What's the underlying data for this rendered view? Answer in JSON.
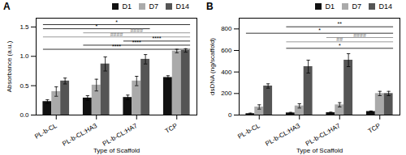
{
  "chart_data": [
    {
      "type": "bar",
      "title": "A",
      "xlabel": "Type of Scaffold",
      "ylabel": "Absorbance (a.u.)",
      "categories": [
        "PL-b-CL",
        "PL-b-CL:HA3",
        "PL-b-CL:HA7",
        "TCP"
      ],
      "series": [
        {
          "name": "D1",
          "color": "#111111",
          "values": [
            0.23,
            0.29,
            0.3,
            0.64
          ],
          "errors": [
            0.03,
            0.04,
            0.04,
            0.03
          ]
        },
        {
          "name": "D7",
          "color": "#aaaaaa",
          "values": [
            0.4,
            0.51,
            0.58,
            1.09
          ],
          "errors": [
            0.08,
            0.1,
            0.08,
            0.03
          ]
        },
        {
          "name": "D14",
          "color": "#555555",
          "values": [
            0.58,
            0.87,
            0.95,
            1.1
          ],
          "errors": [
            0.05,
            0.12,
            0.08,
            0.03
          ]
        }
      ],
      "ylim": [
        0,
        1.65
      ],
      "yticks": [
        {
          "value": 0.0,
          "label": "0.0"
        },
        0.5,
        {
          "value": 1.0,
          "label": "1.0"
        },
        1.5
      ],
      "legend": "upper right",
      "annotations": [
        {
          "text": "****",
          "y": 1.12,
          "color": "black",
          "from": "PL-b-CL",
          "to": "TCP"
        },
        {
          "text": "****",
          "y": 1.19,
          "color": "black",
          "from": "PL-b-CL:HA3",
          "to": "TCP"
        },
        {
          "text": "****",
          "y": 1.26,
          "color": "black",
          "from": "PL-b-CL:HA7",
          "to": "TCP"
        },
        {
          "text": "####",
          "y": 1.33,
          "color": "gray",
          "from": "PL-b-CL",
          "to": "TCP"
        },
        {
          "text": "####",
          "y": 1.4,
          "color": "gray",
          "from": "PL-b-CL:HA3",
          "to": "TCP"
        },
        {
          "text": "*",
          "y": 1.47,
          "color": "black",
          "from": "PL-b-CL",
          "to": "PL-b-CL:HA7"
        },
        {
          "text": "*",
          "y": 1.54,
          "color": "black",
          "from": "PL-b-CL",
          "to": "TCP"
        }
      ]
    },
    {
      "type": "bar",
      "title": "B",
      "xlabel": "Type of Scaffold",
      "ylabel": "dsDNA (ng/scaffold)",
      "categories": [
        "PL-b-CL",
        "PL-b-CL:HA3",
        "PL-b-CL:HA7",
        "TCP"
      ],
      "series": [
        {
          "name": "D1",
          "color": "#111111",
          "values": [
            13,
            20,
            22,
            33
          ],
          "errors": [
            5,
            5,
            5,
            5
          ]
        },
        {
          "name": "D7",
          "color": "#aaaaaa",
          "values": [
            75,
            85,
            95,
            200
          ],
          "errors": [
            20,
            20,
            20,
            20
          ]
        },
        {
          "name": "D14",
          "color": "#555555",
          "values": [
            270,
            450,
            510,
            200
          ],
          "errors": [
            20,
            60,
            60,
            20
          ]
        }
      ],
      "ylim": [
        0,
        900
      ],
      "yticks": [
        0,
        200,
        400,
        600,
        800
      ],
      "legend": "upper right",
      "annotations": [
        {
          "text": "*",
          "y": 620,
          "color": "black",
          "from": "PL-b-CL:HA3",
          "to": "TCP"
        },
        {
          "text": "##",
          "y": 680,
          "color": "gray",
          "from": "PL-b-CL:HA3",
          "to": "TCP"
        },
        {
          "text": "####",
          "y": 720,
          "color": "gray",
          "from": "PL-b-CL:HA7",
          "to": "TCP"
        },
        {
          "text": "*",
          "y": 760,
          "color": "black",
          "from": "PL-b-CL",
          "to": "TCP"
        },
        {
          "text": "**",
          "y": 820,
          "color": "black",
          "from": "PL-b-CL:HA3",
          "to": "TCP"
        }
      ]
    }
  ]
}
